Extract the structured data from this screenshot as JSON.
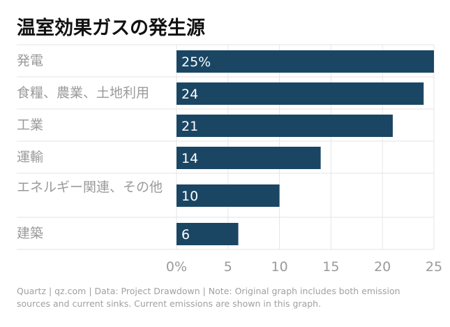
{
  "title": "温室効果ガスの発生源",
  "chart_data": {
    "type": "bar",
    "orientation": "horizontal",
    "categories": [
      "発電",
      "食糧、農業、土地利用",
      "工業",
      "運輸",
      "エネルギー関連、その他",
      "建築"
    ],
    "values": [
      25,
      24,
      21,
      14,
      10,
      6
    ],
    "data_labels": [
      "25%",
      "24",
      "21",
      "14",
      "10",
      "6"
    ],
    "xlim": [
      0,
      25
    ],
    "xticks": [
      0,
      5,
      10,
      15,
      20,
      25
    ],
    "xtick_labels": [
      "0%",
      "5",
      "10",
      "15",
      "20",
      "25"
    ],
    "grid": "vertical",
    "bar_color": "#1a4663",
    "label_color": "#ffffff"
  },
  "footer": "Quartz | qz.com | Data: Project Drawdown | Note: Original graph includes both emission sources and current sinks. Current emissions are shown in this graph."
}
